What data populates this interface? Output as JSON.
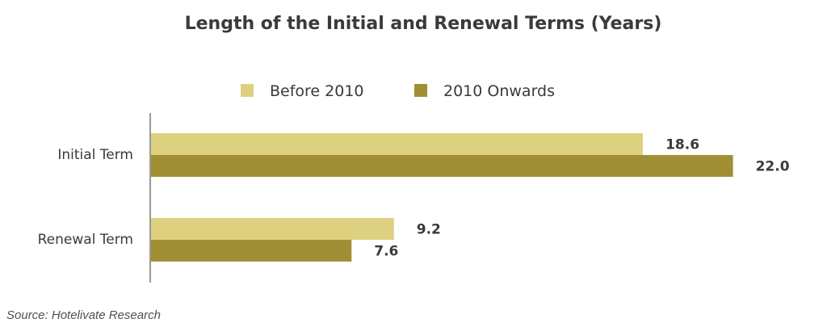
{
  "chart_data": {
    "type": "bar",
    "orientation": "horizontal",
    "title": "Length of the Initial and Renewal Terms (Years)",
    "categories": [
      "Initial Term",
      "Renewal Term"
    ],
    "series": [
      {
        "name": "Before 2010",
        "values": [
          18.6,
          9.2
        ],
        "labels": [
          "18.6",
          "9.2"
        ],
        "color": "#ddd17f"
      },
      {
        "name": "2010 Onwards",
        "values": [
          22.0,
          7.6
        ],
        "labels": [
          "22.0",
          "7.6"
        ],
        "color": "#a18f35"
      }
    ],
    "xlim": [
      0,
      22.5
    ],
    "grid": false,
    "legend_position": "top"
  },
  "source": "Source: Hotelivate Research",
  "colors": {
    "axis": "#999999",
    "text": "#3a3a3a"
  }
}
